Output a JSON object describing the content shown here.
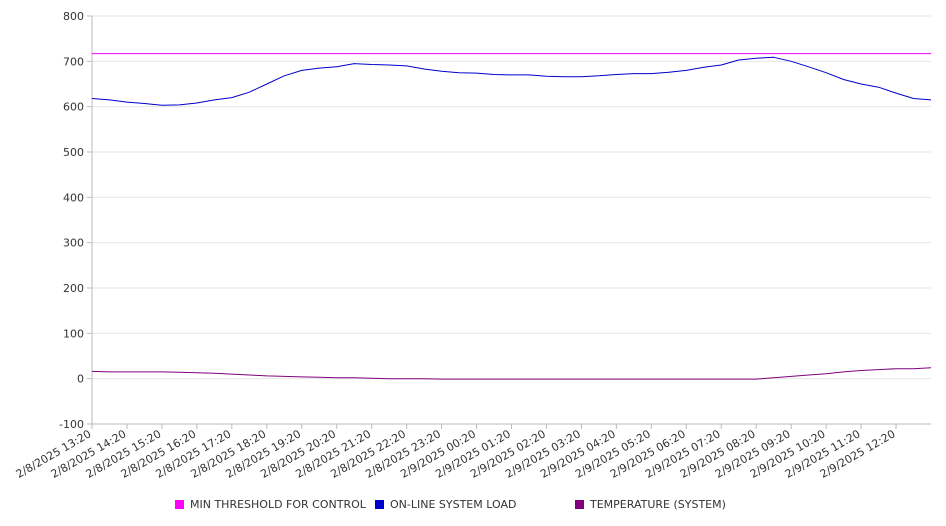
{
  "chart_data": {
    "type": "line",
    "title": "",
    "xlabel": "",
    "ylabel": "",
    "ylim": [
      -100,
      800
    ],
    "y_ticks": [
      "-100",
      "0",
      "100",
      "200",
      "300",
      "400",
      "500",
      "600",
      "700",
      "800"
    ],
    "x_ticks": [
      "2/8/2025 13:20",
      "2/8/2025 14:20",
      "2/8/2025 15:20",
      "2/8/2025 16:20",
      "2/8/2025 17:20",
      "2/8/2025 18:20",
      "2/8/2025 19:20",
      "2/8/2025 20:20",
      "2/8/2025 21:20",
      "2/8/2025 22:20",
      "2/8/2025 23:20",
      "2/9/2025 00:20",
      "2/9/2025 01:20",
      "2/9/2025 02:20",
      "2/9/2025 03:20",
      "2/9/2025 04:20",
      "2/9/2025 05:20",
      "2/9/2025 06:20",
      "2/9/2025 07:20",
      "2/9/2025 08:20",
      "2/9/2025 09:20",
      "2/9/2025 10:20",
      "2/9/2025 11:20",
      "2/9/2025 12:20"
    ],
    "x_hours": [
      0,
      0.5,
      1,
      1.5,
      2,
      2.5,
      3,
      3.5,
      4,
      4.5,
      5,
      5.5,
      6,
      6.5,
      7,
      7.5,
      8,
      8.5,
      9,
      9.5,
      10,
      10.5,
      11,
      11.5,
      12,
      12.5,
      13,
      13.5,
      14,
      14.5,
      15,
      15.5,
      16,
      16.5,
      17,
      17.5,
      18,
      18.5,
      19,
      19.5,
      20,
      20.5,
      21,
      21.5,
      22,
      22.5,
      23,
      23.5,
      24
    ],
    "grid": true,
    "legend_position": "bottom",
    "series": [
      {
        "name": "MIN THRESHOLD FOR CONTROL",
        "color": "#ff00ff",
        "values": [
          717,
          717,
          717,
          717,
          717,
          717,
          717,
          717,
          717,
          717,
          717,
          717,
          717,
          717,
          717,
          717,
          717,
          717,
          717,
          717,
          717,
          717,
          717,
          717,
          717,
          717,
          717,
          717,
          717,
          717,
          717,
          717,
          717,
          717,
          717,
          717,
          717,
          717,
          717,
          717,
          717,
          717,
          717,
          717,
          717,
          717,
          717,
          717,
          717
        ]
      },
      {
        "name": "ON-LINE SYSTEM LOAD",
        "color": "#0000cc",
        "values": [
          618,
          615,
          610,
          607,
          603,
          604,
          608,
          615,
          620,
          632,
          650,
          668,
          680,
          685,
          688,
          695,
          693,
          692,
          690,
          683,
          678,
          675,
          674,
          671,
          670,
          670,
          667,
          666,
          666,
          668,
          671,
          673,
          673,
          676,
          680,
          687,
          692,
          703,
          707,
          709,
          700,
          688,
          675,
          660,
          650,
          643,
          630,
          618,
          615
        ]
      },
      {
        "name": "TEMPERATURE (SYSTEM)",
        "color": "#800080",
        "values": [
          16,
          15,
          15,
          15,
          15,
          14,
          13,
          12,
          10,
          8,
          6,
          5,
          4,
          3,
          2,
          2,
          1,
          0,
          0,
          0,
          -1,
          -1,
          -1,
          -1,
          -1,
          -1,
          -1,
          -1,
          -1,
          -1,
          -1,
          -1,
          -1,
          -1,
          -1,
          -1,
          -1,
          -1,
          -1,
          2,
          5,
          8,
          11,
          15,
          18,
          20,
          22,
          22,
          24
        ]
      }
    ]
  }
}
